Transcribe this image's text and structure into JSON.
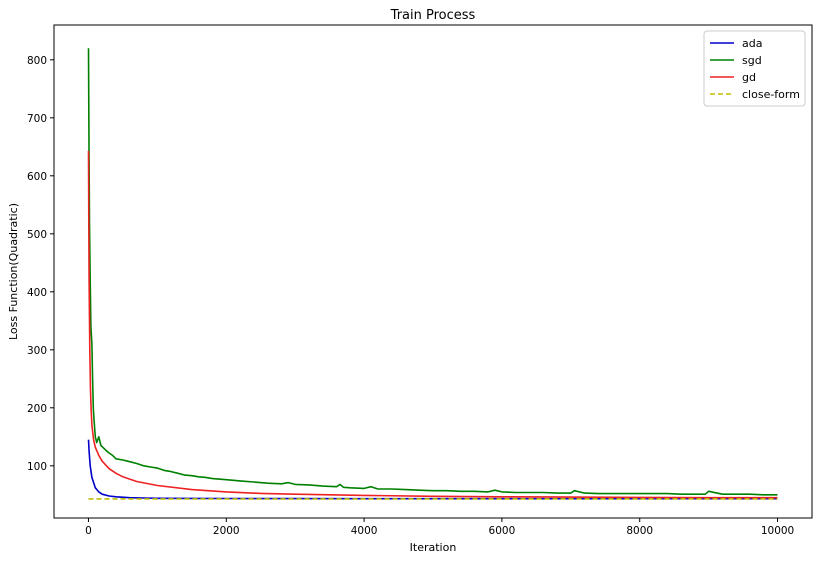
{
  "chart_data": {
    "type": "line",
    "title": "Train Process",
    "xlabel": "Iteration",
    "ylabel": "Loss Function(Quadratic)",
    "xlim": [
      -500,
      10500
    ],
    "ylim": [
      10,
      860
    ],
    "xticks": [
      0,
      2000,
      4000,
      6000,
      8000,
      10000
    ],
    "yticks": [
      100,
      200,
      300,
      400,
      500,
      600,
      700,
      800
    ],
    "grid": false,
    "legend_position": "top-right",
    "series": [
      {
        "name": "ada",
        "color": "#0000cc",
        "dash": "solid",
        "x": [
          0,
          10,
          25,
          50,
          100,
          150,
          200,
          300,
          400,
          600,
          800,
          1000,
          1500,
          2000,
          3000,
          4000,
          5000,
          6000,
          7000,
          8000,
          9000,
          10000
        ],
        "y": [
          145,
          125,
          100,
          80,
          62,
          55,
          51,
          48,
          46.5,
          45,
          44.5,
          44,
          43.8,
          43.6,
          43.4,
          43.3,
          43.3,
          43.3,
          43.2,
          43.2,
          43.2,
          43.2
        ]
      },
      {
        "name": "sgd",
        "color": "#008000",
        "dash": "solid",
        "x": [
          0,
          8,
          15,
          25,
          35,
          50,
          60,
          70,
          80,
          100,
          120,
          150,
          180,
          200,
          250,
          300,
          350,
          400,
          500,
          600,
          700,
          800,
          900,
          1000,
          1100,
          1200,
          1300,
          1400,
          1500,
          1600,
          1700,
          1800,
          2000,
          2200,
          2400,
          2600,
          2800,
          2900,
          3000,
          3200,
          3400,
          3600,
          3650,
          3700,
          3800,
          4000,
          4100,
          4200,
          4400,
          4600,
          4800,
          5000,
          5200,
          5400,
          5600,
          5800,
          5900,
          6000,
          6200,
          6400,
          6600,
          6800,
          7000,
          7050,
          7200,
          7400,
          7600,
          7800,
          8000,
          8200,
          8400,
          8600,
          8800,
          8950,
          9000,
          9200,
          9400,
          9600,
          9800,
          10000
        ],
        "y": [
          820,
          650,
          520,
          420,
          340,
          310,
          250,
          200,
          180,
          150,
          140,
          150,
          135,
          133,
          127,
          122,
          118,
          112,
          110,
          107,
          104,
          100,
          98,
          96,
          92,
          90,
          87,
          84,
          83,
          81,
          80,
          78,
          76,
          74,
          72,
          70,
          69,
          71,
          68,
          67,
          65,
          64,
          68,
          63,
          62,
          61,
          64,
          60,
          60,
          59,
          58,
          57,
          57,
          56,
          56,
          55,
          58,
          55,
          54,
          54,
          54,
          53,
          53,
          57,
          53,
          52,
          52,
          52,
          52,
          52,
          52,
          51,
          51,
          51,
          56,
          51,
          51,
          51,
          50,
          50
        ]
      },
      {
        "name": "gd",
        "color": "#ee2222",
        "dash": "solid",
        "x": [
          0,
          5,
          10,
          20,
          30,
          40,
          50,
          75,
          100,
          150,
          200,
          300,
          400,
          500,
          700,
          1000,
          1500,
          2000,
          2500,
          3000,
          4000,
          5000,
          6000,
          7000,
          8000,
          9000,
          10000
        ],
        "y": [
          643,
          520,
          420,
          300,
          230,
          195,
          170,
          145,
          132,
          118,
          108,
          95,
          87,
          81,
          73,
          66,
          59,
          55,
          52.5,
          51,
          49,
          47.5,
          46.5,
          46,
          45.5,
          45,
          45
        ]
      },
      {
        "name": "close-form",
        "color": "#bfbf00",
        "dash": "dashed",
        "x": [
          0,
          10000
        ],
        "y": [
          43,
          43
        ]
      }
    ]
  }
}
